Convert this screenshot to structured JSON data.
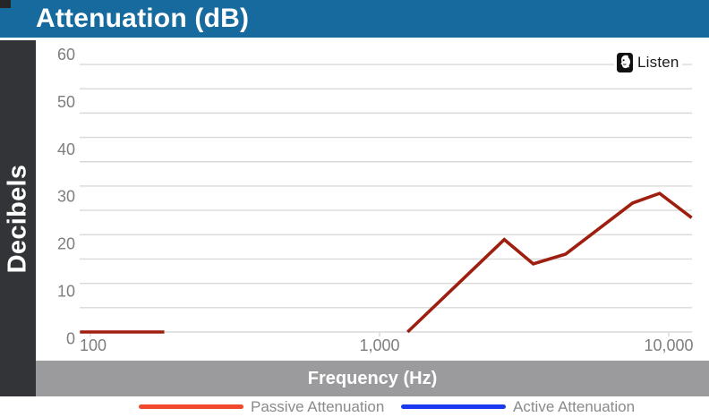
{
  "header": {
    "title": "Attenuation (dB)",
    "bg": "#176a9e"
  },
  "sidebar": {
    "label": "Decibels",
    "bg": "#333437"
  },
  "x_axis_bar": {
    "label": "Frequency (Hz)",
    "bg": "#9b9b9d"
  },
  "logo": {
    "text": "Listen",
    "icon": "listen-face-icon"
  },
  "legend": [
    {
      "label": "Passive Attenuation",
      "color": "#f2492e"
    },
    {
      "label": "Active Attenuation",
      "color": "#1b3af0"
    }
  ],
  "colors": {
    "gridline": "#d9d9d9",
    "tick_label": "#7e7e7e",
    "passive_line": "#9e1f0f",
    "corner_notch": "#262626"
  },
  "chart_data": {
    "type": "line",
    "title": "Attenuation (dB)",
    "xlabel": "Frequency (Hz)",
    "ylabel": "Decibels",
    "x_scale": "log",
    "xlim": [
      92,
      12600
    ],
    "ylim": [
      0,
      60
    ],
    "y_tick_labels": [
      60,
      50,
      40,
      30,
      20,
      10,
      0
    ],
    "x_tick_labels": [
      "100",
      "1,000",
      "10,000"
    ],
    "x_tick_values": [
      100,
      1000,
      10000
    ],
    "grid": "horizontal lines every 5 dB, on",
    "legend_position": "bottom",
    "series": [
      {
        "name": "Passive Attenuation",
        "line_color": "#9e1f0f",
        "points_hz_db": [
          [
            92,
            0
          ],
          [
            180,
            0
          ],
          null,
          [
            1250,
            0
          ],
          [
            2700,
            19
          ],
          [
            3400,
            14
          ],
          [
            4400,
            16
          ],
          [
            7500,
            26.5
          ],
          [
            9300,
            28.5
          ],
          [
            12000,
            23.5
          ]
        ],
        "note": "flat at 0 dB from ~92-180 Hz, gap (at/below 0 dB) until ~1.25 kHz, then rises"
      },
      {
        "name": "Active Attenuation",
        "line_color": "#1b3af0",
        "points_hz_db": []
      }
    ]
  }
}
